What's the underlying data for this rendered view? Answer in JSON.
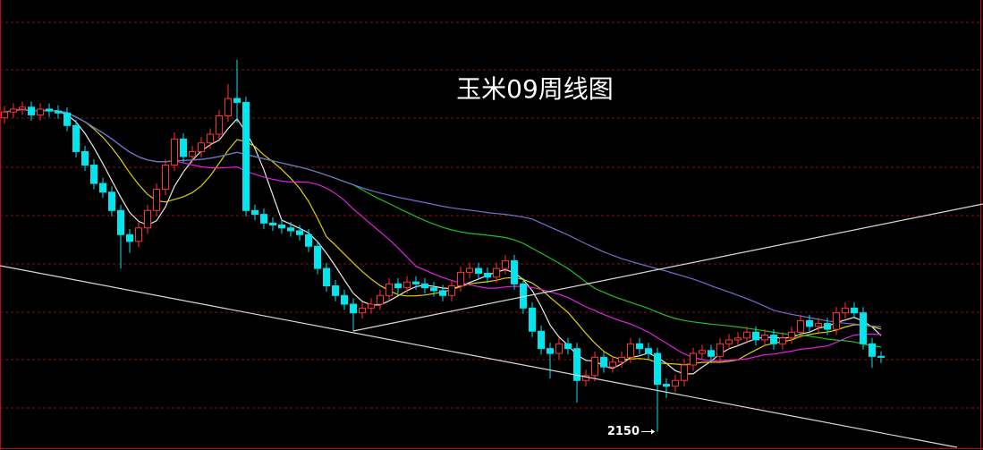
{
  "chart_data": {
    "type": "candlestick",
    "title": "玉米09周线图",
    "ylim": [
      2131,
      2597
    ],
    "up_color": "#ff3232",
    "down_color": "#00e5ee",
    "moving_averages": [
      {
        "period": 5,
        "color": "#e8e8e8"
      },
      {
        "period": 10,
        "color": "#e0d000"
      },
      {
        "period": 20,
        "color": "#e020e0"
      },
      {
        "period": 40,
        "color": "#20c020"
      },
      {
        "period": 60,
        "color": "#7070d0"
      }
    ],
    "annotations": [
      {
        "text": "2150",
        "index": 73,
        "value": 2150
      }
    ],
    "ohlc": [
      [
        2475,
        2487,
        2469,
        2481
      ],
      [
        2481,
        2490,
        2475,
        2484
      ],
      [
        2484,
        2492,
        2478,
        2486
      ],
      [
        2486,
        2492,
        2472,
        2478
      ],
      [
        2478,
        2490,
        2472,
        2484
      ],
      [
        2484,
        2490,
        2476,
        2482
      ],
      [
        2482,
        2488,
        2474,
        2480
      ],
      [
        2480,
        2486,
        2461,
        2467
      ],
      [
        2467,
        2473,
        2434,
        2440
      ],
      [
        2440,
        2446,
        2420,
        2426
      ],
      [
        2426,
        2432,
        2401,
        2407
      ],
      [
        2407,
        2413,
        2392,
        2398
      ],
      [
        2398,
        2404,
        2373,
        2379
      ],
      [
        2379,
        2385,
        2319,
        2354
      ],
      [
        2354,
        2360,
        2335,
        2347
      ],
      [
        2347,
        2367,
        2341,
        2361
      ],
      [
        2361,
        2385,
        2355,
        2379
      ],
      [
        2379,
        2407,
        2373,
        2401
      ],
      [
        2401,
        2432,
        2395,
        2426
      ],
      [
        2426,
        2460,
        2420,
        2453
      ],
      [
        2453,
        2459,
        2429,
        2435
      ],
      [
        2435,
        2446,
        2429,
        2440
      ],
      [
        2440,
        2455,
        2434,
        2449
      ],
      [
        2449,
        2464,
        2443,
        2458
      ],
      [
        2458,
        2483,
        2452,
        2477
      ],
      [
        2477,
        2510,
        2471,
        2495
      ],
      [
        2495,
        2535,
        2470,
        2491
      ],
      [
        2491,
        2497,
        2373,
        2379
      ],
      [
        2379,
        2385,
        2369,
        2375
      ],
      [
        2375,
        2381,
        2360,
        2366
      ],
      [
        2366,
        2372,
        2358,
        2364
      ],
      [
        2364,
        2370,
        2355,
        2361
      ],
      [
        2361,
        2367,
        2352,
        2358
      ],
      [
        2358,
        2364,
        2348,
        2354
      ],
      [
        2354,
        2360,
        2336,
        2342
      ],
      [
        2342,
        2348,
        2313,
        2319
      ],
      [
        2319,
        2325,
        2295,
        2301
      ],
      [
        2301,
        2307,
        2285,
        2291
      ],
      [
        2291,
        2297,
        2276,
        2282
      ],
      [
        2282,
        2288,
        2254,
        2273
      ],
      [
        2273,
        2284,
        2267,
        2278
      ],
      [
        2278,
        2288,
        2272,
        2282
      ],
      [
        2282,
        2297,
        2276,
        2291
      ],
      [
        2291,
        2309,
        2285,
        2303
      ],
      [
        2303,
        2309,
        2293,
        2299
      ],
      [
        2299,
        2311,
        2293,
        2305
      ],
      [
        2305,
        2311,
        2297,
        2303
      ],
      [
        2303,
        2309,
        2293,
        2299
      ],
      [
        2299,
        2305,
        2290,
        2296
      ],
      [
        2296,
        2302,
        2285,
        2291
      ],
      [
        2291,
        2307,
        2285,
        2301
      ],
      [
        2301,
        2321,
        2295,
        2315
      ],
      [
        2315,
        2325,
        2309,
        2319
      ],
      [
        2319,
        2325,
        2308,
        2314
      ],
      [
        2314,
        2320,
        2304,
        2310
      ],
      [
        2310,
        2325,
        2304,
        2319
      ],
      [
        2319,
        2333,
        2313,
        2327
      ],
      [
        2327,
        2333,
        2297,
        2303
      ],
      [
        2303,
        2309,
        2272,
        2278
      ],
      [
        2278,
        2284,
        2248,
        2254
      ],
      [
        2254,
        2260,
        2230,
        2236
      ],
      [
        2236,
        2242,
        2205,
        2231
      ],
      [
        2231,
        2247,
        2225,
        2241
      ],
      [
        2241,
        2247,
        2230,
        2236
      ],
      [
        2236,
        2242,
        2180,
        2203
      ],
      [
        2203,
        2214,
        2197,
        2208
      ],
      [
        2208,
        2233,
        2202,
        2227
      ],
      [
        2227,
        2233,
        2211,
        2217
      ],
      [
        2217,
        2228,
        2211,
        2222
      ],
      [
        2222,
        2233,
        2216,
        2227
      ],
      [
        2227,
        2247,
        2221,
        2241
      ],
      [
        2241,
        2247,
        2230,
        2236
      ],
      [
        2236,
        2242,
        2225,
        2231
      ],
      [
        2231,
        2237,
        2150,
        2199
      ],
      [
        2199,
        2205,
        2185,
        2197
      ],
      [
        2197,
        2209,
        2191,
        2203
      ],
      [
        2203,
        2225,
        2197,
        2219
      ],
      [
        2219,
        2237,
        2213,
        2231
      ],
      [
        2231,
        2240,
        2225,
        2234
      ],
      [
        2234,
        2240,
        2222,
        2228
      ],
      [
        2228,
        2247,
        2222,
        2241
      ],
      [
        2241,
        2251,
        2235,
        2245
      ],
      [
        2245,
        2253,
        2239,
        2247
      ],
      [
        2247,
        2259,
        2241,
        2253
      ],
      [
        2253,
        2259,
        2239,
        2245
      ],
      [
        2245,
        2256,
        2239,
        2250
      ],
      [
        2250,
        2256,
        2235,
        2241
      ],
      [
        2241,
        2253,
        2235,
        2247
      ],
      [
        2247,
        2259,
        2241,
        2253
      ],
      [
        2253,
        2271,
        2247,
        2265
      ],
      [
        2265,
        2271,
        2253,
        2259
      ],
      [
        2259,
        2268,
        2253,
        2262
      ],
      [
        2262,
        2268,
        2250,
        2256
      ],
      [
        2256,
        2279,
        2250,
        2273
      ],
      [
        2273,
        2284,
        2267,
        2278
      ],
      [
        2278,
        2284,
        2267,
        2273
      ],
      [
        2273,
        2279,
        2235,
        2241
      ],
      [
        2241,
        2247,
        2216,
        2228
      ],
      [
        2228,
        2233,
        2221,
        2227
      ]
    ]
  }
}
